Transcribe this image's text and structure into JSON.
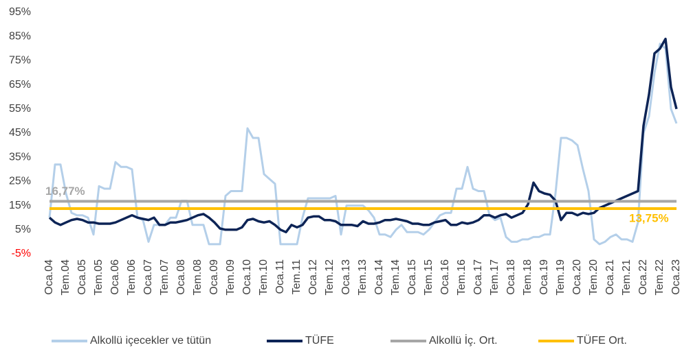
{
  "chart_data": {
    "type": "line",
    "categories": [
      "Oca.04",
      null,
      null,
      "Tem.04",
      null,
      null,
      "Oca.05",
      null,
      null,
      "Tem.05",
      null,
      null,
      "Oca.06",
      null,
      null,
      "Tem.06",
      null,
      null,
      "Oca.07",
      null,
      null,
      "Tem.07",
      null,
      null,
      "Oca.08",
      null,
      null,
      "Tem.08",
      null,
      null,
      "Oca.09",
      null,
      null,
      "Tem.09",
      null,
      null,
      "Oca.10",
      null,
      null,
      "Tem.10",
      null,
      null,
      "Oca.11",
      null,
      null,
      "Tem.11",
      null,
      null,
      "Oca.12",
      null,
      null,
      "Tem.12",
      null,
      null,
      "Oca.13",
      null,
      null,
      "Tem.13",
      null,
      null,
      "Oca.14",
      null,
      null,
      "Tem.14",
      null,
      null,
      "Oca.15",
      null,
      null,
      "Tem.15",
      null,
      null,
      "Oca.16",
      null,
      null,
      "Tem.16",
      null,
      null,
      "Oca.17",
      null,
      null,
      "Tem.17",
      null,
      null,
      "Oca.18",
      null,
      null,
      "Tem.18",
      null,
      null,
      "Oca.19",
      null,
      null,
      "Tem.19",
      null,
      null,
      "Oca.20",
      null,
      null,
      "Tem.20",
      null,
      null,
      "Oca.21",
      null,
      null,
      "Tem.21",
      null,
      null,
      "Oca.22",
      null,
      null,
      "Tem.22",
      null,
      null,
      "Oca.23"
    ],
    "series": [
      {
        "name": "Alkollü içecekler ve tütün",
        "color": "#b4cfe9",
        "values": [
          10,
          32,
          32,
          20,
          12,
          11,
          11,
          10,
          3,
          23,
          22,
          22,
          33,
          31,
          31,
          30,
          10,
          9,
          0,
          7,
          7,
          7,
          10,
          10,
          17,
          17,
          7,
          7,
          7,
          -1,
          -1,
          -1,
          19,
          21,
          21,
          21,
          47,
          43,
          43,
          28,
          26,
          24,
          -1,
          -1,
          -1,
          -1,
          10,
          18,
          18,
          18,
          18,
          18,
          19,
          3,
          15,
          15,
          15,
          15,
          13,
          10,
          3,
          3,
          2,
          5,
          7,
          4,
          4,
          4,
          3,
          5,
          8,
          11,
          12,
          12,
          22,
          22,
          31,
          22,
          21,
          21,
          11,
          9,
          10,
          2,
          0,
          0,
          1,
          1,
          2,
          2,
          3,
          3,
          20,
          43,
          43,
          42,
          40,
          30,
          21,
          1,
          -1,
          0,
          2,
          3,
          1,
          1,
          0,
          8,
          45,
          52,
          70,
          82,
          80,
          55,
          49
        ]
      },
      {
        "name": "TÜFE",
        "color": "#0d2456",
        "values": [
          10,
          8,
          7,
          8,
          9,
          9.5,
          9,
          8,
          8,
          7.5,
          7.5,
          7.5,
          8,
          9,
          10,
          11,
          10,
          9.5,
          9,
          10,
          7,
          7,
          8,
          8,
          8.5,
          9,
          10,
          11,
          11.5,
          10,
          8,
          5.5,
          5,
          5,
          5,
          6,
          9,
          9.5,
          8.5,
          8,
          8.5,
          7,
          5,
          4,
          7,
          6,
          7,
          10,
          10.5,
          10.5,
          9,
          9,
          8.5,
          7,
          7,
          7,
          6.5,
          8.5,
          7.5,
          7.5,
          8,
          9,
          9,
          9.5,
          9,
          8.5,
          7.5,
          7.5,
          7,
          7,
          8,
          8.5,
          9,
          7,
          7,
          8,
          7.5,
          8,
          9,
          11,
          11,
          10,
          11,
          11.5,
          10,
          11,
          12,
          15.5,
          24.5,
          21,
          20,
          19.5,
          17,
          9,
          12,
          12,
          11,
          12,
          11.5,
          12,
          14,
          15,
          16,
          17,
          18,
          19,
          20,
          21,
          48,
          61,
          78,
          80,
          84,
          64,
          55
        ]
      },
      {
        "name": "Alkollü İç. Ort.",
        "color": "#a6a6a6",
        "value": 16.77,
        "value_label": "16,77%"
      },
      {
        "name": "TÜFE Ort.",
        "color": "#ffc000",
        "value": 13.75,
        "value_label": "13,75%"
      }
    ],
    "ylim": [
      -5,
      95
    ],
    "yticks": [
      {
        "value": 95,
        "label": "95%"
      },
      {
        "value": 85,
        "label": "85%"
      },
      {
        "value": 75,
        "label": "75%"
      },
      {
        "value": 65,
        "label": "65%"
      },
      {
        "value": 55,
        "label": "55%"
      },
      {
        "value": 45,
        "label": "45%"
      },
      {
        "value": 35,
        "label": "35%"
      },
      {
        "value": 25,
        "label": "25%"
      },
      {
        "value": 15,
        "label": "15%"
      },
      {
        "value": 5,
        "label": "5%"
      },
      {
        "value": -5,
        "label": "-5%"
      }
    ],
    "negative_tick_color": "#ff0000",
    "grid": false,
    "legend": "bottom"
  }
}
